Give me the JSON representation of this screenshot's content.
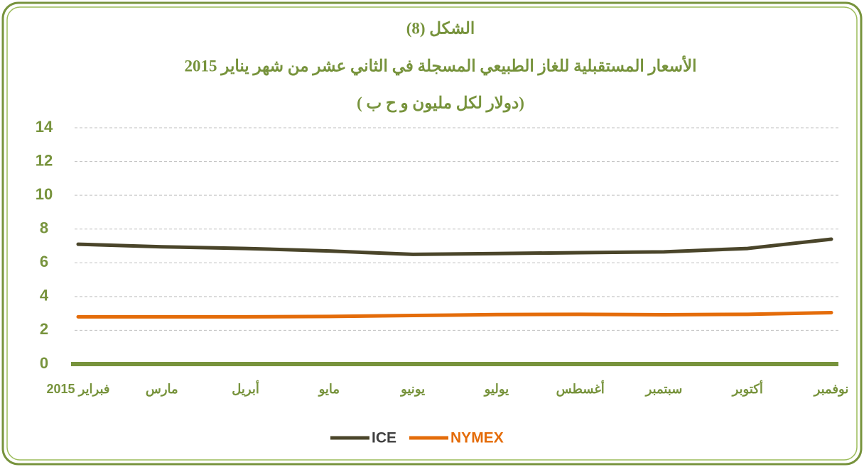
{
  "chart_data": {
    "type": "line",
    "title": "الشكل (8)",
    "subtitle": "الأسعار المستقبلية للغاز الطبيعي المسجلة في الثاني عشر من شهر يناير 2015",
    "unit_label": "(دولار لكل مليون و ح ب )",
    "categories": [
      "فبراير 2015",
      "مارس",
      "أبريل",
      "مايو",
      "يونيو",
      "يوليو",
      "أغسطس",
      "سبتمبر",
      "أكتوبر",
      "نوفمبر"
    ],
    "series": [
      {
        "name": "ICE",
        "color": "#4a452a",
        "values": [
          7.1,
          6.95,
          6.85,
          6.7,
          6.5,
          6.55,
          6.6,
          6.65,
          6.85,
          7.4
        ]
      },
      {
        "name": "NYMEX",
        "color": "#e46c0a",
        "values": [
          2.8,
          2.8,
          2.8,
          2.82,
          2.88,
          2.93,
          2.95,
          2.92,
          2.95,
          3.05
        ]
      }
    ],
    "ylim": [
      0,
      14
    ],
    "yticks": [
      0,
      2,
      4,
      6,
      8,
      10,
      12,
      14
    ],
    "grid": true,
    "text_color": "#77933c",
    "axis_color": "#77933c",
    "legend": "bottom"
  }
}
